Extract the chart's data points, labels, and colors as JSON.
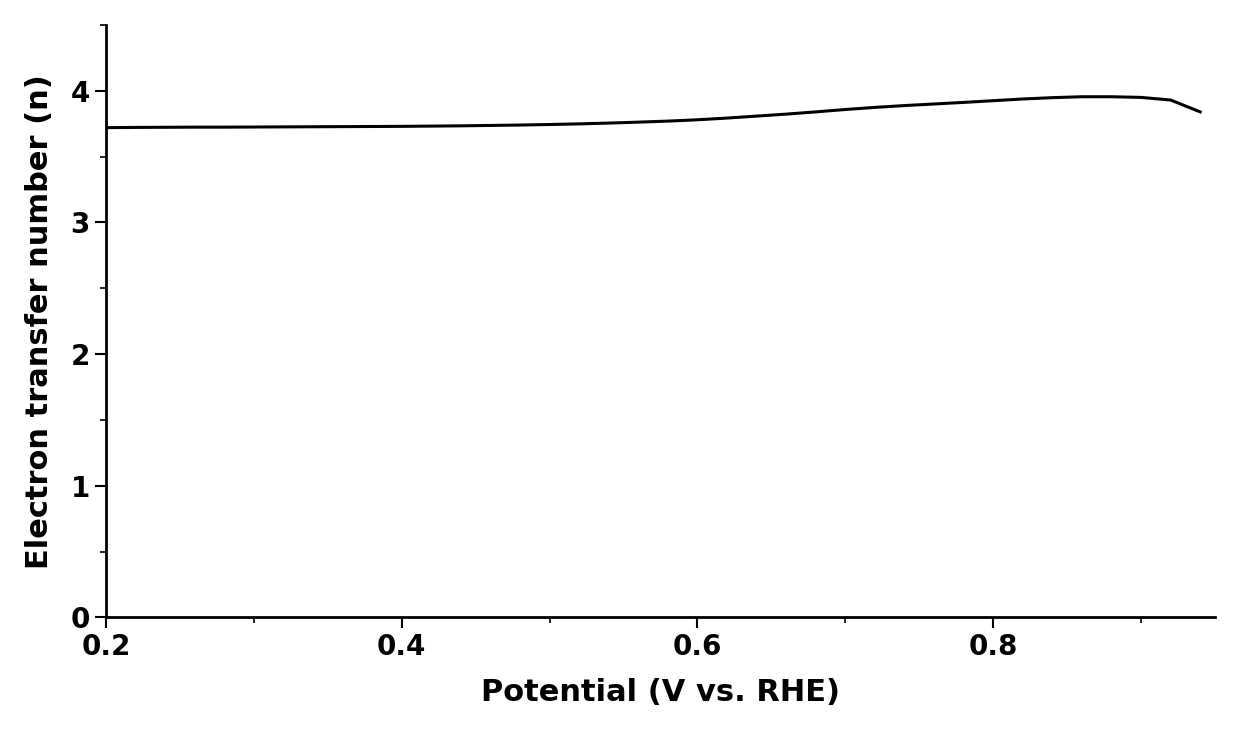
{
  "xlabel": "Potential (V vs. RHE)",
  "ylabel": "Electron transfer number (n)",
  "xlim": [
    0.2,
    0.95
  ],
  "ylim": [
    0.0,
    4.5
  ],
  "xticks": [
    0.2,
    0.4,
    0.6,
    0.8
  ],
  "yticks": [
    0,
    1,
    2,
    3,
    4
  ],
  "line_color": "#000000",
  "line_width": 2.2,
  "background_color": "#ffffff",
  "xlabel_fontsize": 22,
  "ylabel_fontsize": 22,
  "tick_fontsize": 20,
  "x_data": [
    0.2,
    0.22,
    0.24,
    0.26,
    0.28,
    0.3,
    0.32,
    0.34,
    0.36,
    0.38,
    0.4,
    0.42,
    0.44,
    0.46,
    0.48,
    0.5,
    0.52,
    0.54,
    0.56,
    0.58,
    0.6,
    0.62,
    0.64,
    0.66,
    0.68,
    0.7,
    0.72,
    0.74,
    0.76,
    0.78,
    0.8,
    0.82,
    0.84,
    0.86,
    0.88,
    0.9,
    0.92,
    0.94
  ],
  "y_data": [
    3.72,
    3.722,
    3.723,
    3.724,
    3.724,
    3.725,
    3.726,
    3.727,
    3.728,
    3.729,
    3.73,
    3.732,
    3.734,
    3.737,
    3.74,
    3.744,
    3.749,
    3.755,
    3.762,
    3.77,
    3.78,
    3.793,
    3.808,
    3.823,
    3.84,
    3.858,
    3.874,
    3.888,
    3.9,
    3.912,
    3.925,
    3.938,
    3.948,
    3.955,
    3.955,
    3.95,
    3.93,
    3.84
  ]
}
